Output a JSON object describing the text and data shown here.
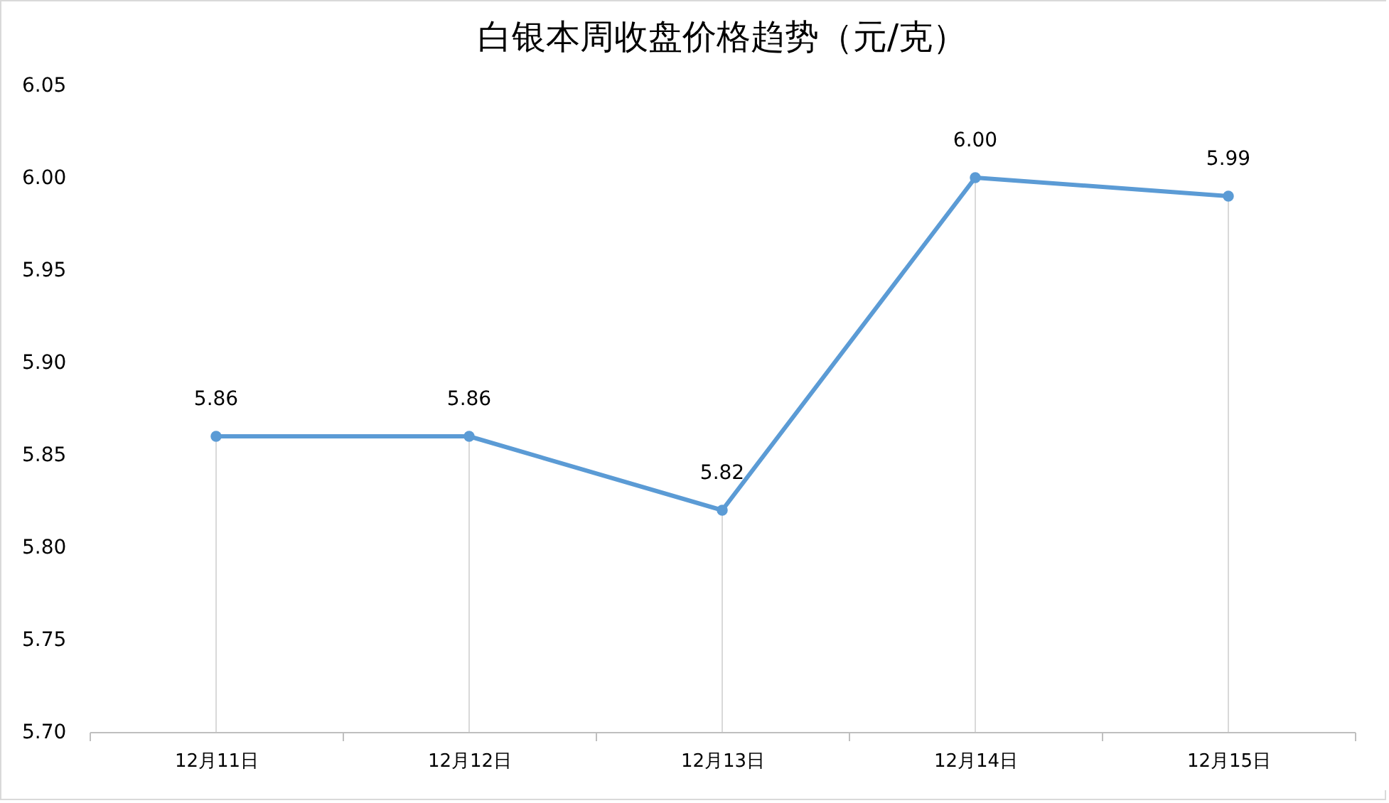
{
  "chart_data": {
    "type": "line",
    "title": "白银本周收盘价格趋势（元/克）",
    "categories": [
      "12月11日",
      "12月12日",
      "12月13日",
      "12月14日",
      "12月15日"
    ],
    "series": [
      {
        "color": "#5b9bd5",
        "values": [
          5.86,
          5.86,
          5.82,
          6.0,
          5.99
        ],
        "value_labels": [
          "5.86",
          "5.86",
          "5.82",
          "6.00",
          "5.99"
        ]
      }
    ],
    "ylim": [
      5.7,
      6.05
    ],
    "yticks": [
      {
        "value": 5.7,
        "label": "5.70"
      },
      {
        "value": 5.75,
        "label": "5.75"
      },
      {
        "value": 5.8,
        "label": "5.80"
      },
      {
        "value": 5.85,
        "label": "5.85"
      },
      {
        "value": 5.9,
        "label": "5.90"
      },
      {
        "value": 5.95,
        "label": "5.95"
      },
      {
        "value": 6.0,
        "label": "6.00"
      },
      {
        "value": 6.05,
        "label": "6.05"
      }
    ],
    "grid": "x",
    "marker": "circle",
    "line_style": "solid"
  }
}
